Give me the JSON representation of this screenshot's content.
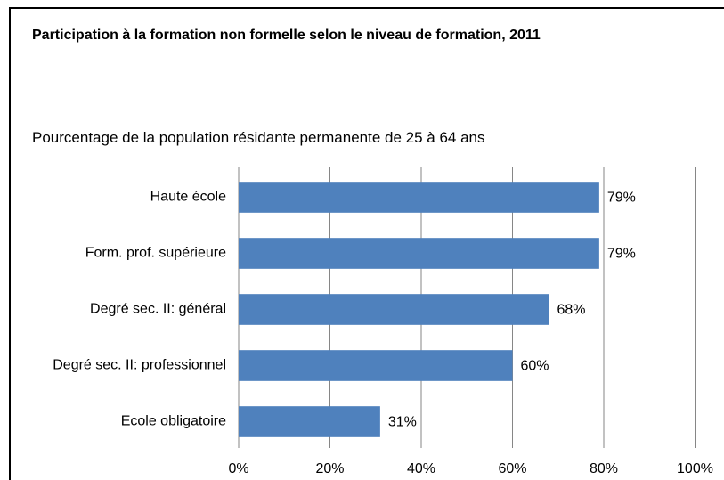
{
  "chart_data": {
    "type": "hbar",
    "title": "Participation  à la formation  non formelle  selon le niveau de formation,  2011",
    "subtitle": "Pourcentage de la population résidante permanente de 25 à 64 ans",
    "categories": [
      "Haute école",
      "Form. prof. supérieure",
      "Degré sec. II: général",
      "Degré sec. II: professionnel",
      "Ecole obligatoire"
    ],
    "values": [
      79,
      79,
      68,
      60,
      31
    ],
    "value_labels": [
      "79%",
      "79%",
      "68%",
      "60%",
      "31%"
    ],
    "color": "#4f81bd",
    "xlim": [
      0,
      100
    ],
    "xticks": [
      {
        "value": 0,
        "label": "0%"
      },
      {
        "value": 20,
        "label": "20%"
      },
      {
        "value": 40,
        "label": "40%"
      },
      {
        "value": 60,
        "label": "60%"
      },
      {
        "value": 80,
        "label": "80%"
      },
      {
        "value": 100,
        "label": "100%"
      }
    ],
    "grid": true
  }
}
